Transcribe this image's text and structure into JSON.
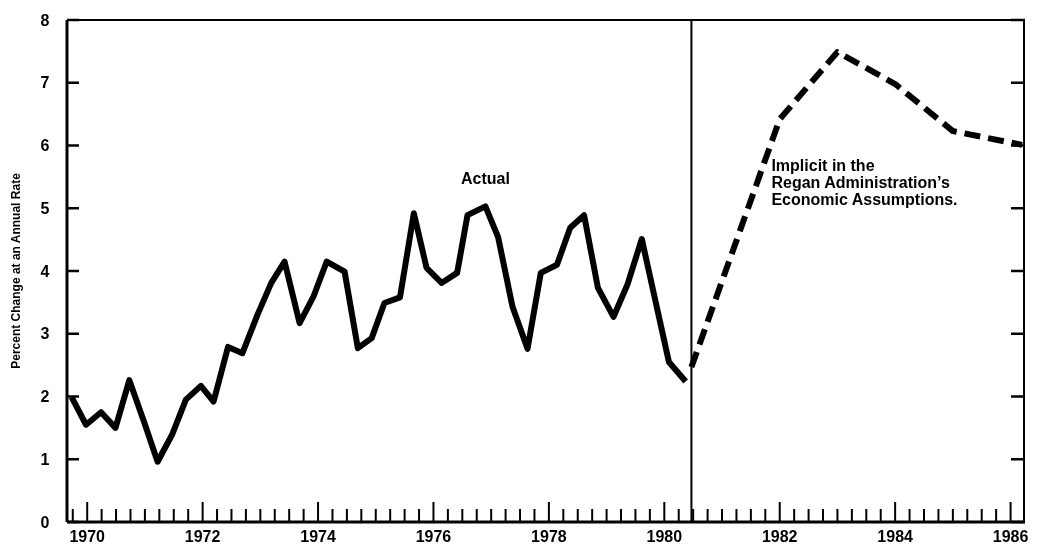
{
  "chart_data": {
    "type": "line",
    "ylabel": "Percent Change at an Annual Rate",
    "xlim": [
      1969.65,
      1986.25
    ],
    "ylim": [
      0,
      8
    ],
    "yticks": [
      0,
      1,
      2,
      3,
      4,
      5,
      6,
      7,
      8
    ],
    "xticks": [
      {
        "value": 1969.75,
        "label": null
      },
      1970,
      {
        "value": 1970.25,
        "label": null
      },
      {
        "value": 1970.5,
        "label": null
      },
      {
        "value": 1970.75,
        "label": null
      },
      {
        "value": 1971,
        "label": null
      },
      {
        "value": 1971.25,
        "label": null
      },
      {
        "value": 1971.5,
        "label": null
      },
      {
        "value": 1971.75,
        "label": null
      },
      1972,
      {
        "value": 1972.25,
        "label": null
      },
      {
        "value": 1972.5,
        "label": null
      },
      {
        "value": 1972.75,
        "label": null
      },
      {
        "value": 1973,
        "label": null
      },
      {
        "value": 1973.25,
        "label": null
      },
      {
        "value": 1973.5,
        "label": null
      },
      {
        "value": 1973.75,
        "label": null
      },
      1974,
      {
        "value": 1974.25,
        "label": null
      },
      {
        "value": 1974.5,
        "label": null
      },
      {
        "value": 1974.75,
        "label": null
      },
      {
        "value": 1975,
        "label": null
      },
      {
        "value": 1975.25,
        "label": null
      },
      {
        "value": 1975.5,
        "label": null
      },
      {
        "value": 1975.75,
        "label": null
      },
      1976,
      {
        "value": 1976.25,
        "label": null
      },
      {
        "value": 1976.5,
        "label": null
      },
      {
        "value": 1976.75,
        "label": null
      },
      {
        "value": 1977,
        "label": null
      },
      {
        "value": 1977.25,
        "label": null
      },
      {
        "value": 1977.5,
        "label": null
      },
      {
        "value": 1977.75,
        "label": null
      },
      1978,
      {
        "value": 1978.25,
        "label": null
      },
      {
        "value": 1978.5,
        "label": null
      },
      {
        "value": 1978.75,
        "label": null
      },
      {
        "value": 1979,
        "label": null
      },
      {
        "value": 1979.25,
        "label": null
      },
      {
        "value": 1979.5,
        "label": null
      },
      {
        "value": 1979.75,
        "label": null
      },
      1980,
      {
        "value": 1980.25,
        "label": null
      },
      {
        "value": 1980.5,
        "label": null
      },
      {
        "value": 1980.75,
        "label": null
      },
      {
        "value": 1981,
        "label": null
      },
      {
        "value": 1981.25,
        "label": null
      },
      {
        "value": 1981.5,
        "label": null
      },
      {
        "value": 1981.75,
        "label": null
      },
      1982,
      {
        "value": 1982.25,
        "label": null
      },
      {
        "value": 1982.5,
        "label": null
      },
      {
        "value": 1982.75,
        "label": null
      },
      {
        "value": 1983,
        "label": null
      },
      {
        "value": 1983.25,
        "label": null
      },
      {
        "value": 1983.5,
        "label": null
      },
      {
        "value": 1983.75,
        "label": null
      },
      1984,
      {
        "value": 1984.25,
        "label": null
      },
      {
        "value": 1984.5,
        "label": null
      },
      {
        "value": 1984.75,
        "label": null
      },
      {
        "value": 1985,
        "label": null
      },
      {
        "value": 1985.25,
        "label": null
      },
      {
        "value": 1985.5,
        "label": null
      },
      {
        "value": 1985.75,
        "label": null
      },
      1986
    ],
    "series": [
      {
        "color": "#000000",
        "line_style": "solid",
        "x": [
          1969.73,
          1969.98,
          1970.24,
          1970.49,
          1970.73,
          1970.98,
          1971.22,
          1971.47,
          1971.71,
          1971.97,
          1972.19,
          1972.44,
          1972.69,
          1972.95,
          1973.19,
          1973.42,
          1973.68,
          1973.92,
          1974.15,
          1974.46,
          1974.69,
          1974.93,
          1975.15,
          1975.42,
          1975.66,
          1975.88,
          1976.14,
          1976.41,
          1976.59,
          1976.9,
          1977.12,
          1977.37,
          1977.63,
          1977.86,
          1978.14,
          1978.37,
          1978.61,
          1978.85,
          1979.12,
          1979.36,
          1979.61,
          1979.83,
          1980.08,
          1980.37
        ],
        "values": [
          1.99,
          1.55,
          1.75,
          1.5,
          2.26,
          1.61,
          0.96,
          1.39,
          1.95,
          2.17,
          1.92,
          2.79,
          2.69,
          3.3,
          3.81,
          4.15,
          3.17,
          3.59,
          4.15,
          3.99,
          2.77,
          2.93,
          3.49,
          3.58,
          4.92,
          4.05,
          3.81,
          3.97,
          4.89,
          5.03,
          4.54,
          3.43,
          2.76,
          3.97,
          4.1,
          4.69,
          4.89,
          3.73,
          3.27,
          3.78,
          4.51,
          3.59,
          2.55,
          2.24
        ]
      },
      {
        "color": "#000000",
        "line_style": "dashed",
        "x": [
          1980.47,
          1982,
          1983,
          1984,
          1985,
          1986.2
        ],
        "values": [
          2.47,
          6.42,
          7.49,
          6.98,
          6.23,
          6.01
        ]
      }
    ],
    "ref_lines": [
      {
        "axis": "x",
        "value": 1980.47,
        "color": "#000000"
      }
    ],
    "annotations": [
      "Actual",
      "Implicit in the\nRegan Administration’s\nEconomic Assumptions."
    ],
    "marker": "none",
    "grid": false
  }
}
